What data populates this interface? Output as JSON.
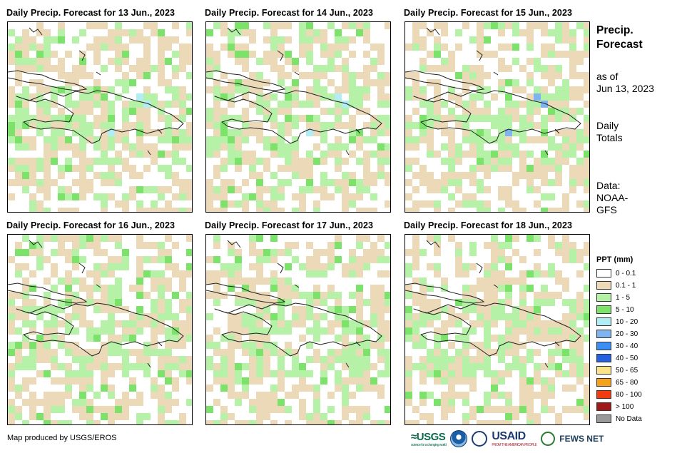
{
  "panels": [
    {
      "id": 1,
      "title": "Daily Precip. Forecast for 13 Jun., 2023"
    },
    {
      "id": 2,
      "title": "Daily Precip. Forecast for 14 Jun., 2023"
    },
    {
      "id": 3,
      "title": "Daily Precip. Forecast for 15 Jun., 2023"
    },
    {
      "id": 4,
      "title": "Daily Precip. Forecast for 16 Jun., 2023"
    },
    {
      "id": 5,
      "title": "Daily Precip. Forecast for 17 Jun., 2023"
    },
    {
      "id": 6,
      "title": "Daily Precip. Forecast for 18 Jun., 2023"
    }
  ],
  "side": {
    "title_line1": "Precip.",
    "title_line2": "Forecast",
    "asof_line1": "as of",
    "asof_line2": "Jun 13, 2023",
    "totals_line1": "Daily",
    "totals_line2": "Totals",
    "data_line1": "Data:",
    "data_line2": "NOAA-",
    "data_line3": "GFS"
  },
  "legend": {
    "title": "PPT (mm)",
    "items": [
      {
        "label": "0 - 0.1",
        "color": "#ffffff"
      },
      {
        "label": "0.1 - 1",
        "color": "#ecd9b8"
      },
      {
        "label": "1 - 5",
        "color": "#b6f1a8"
      },
      {
        "label": "5 - 10",
        "color": "#7be36a"
      },
      {
        "label": "10 - 20",
        "color": "#b2ecf5"
      },
      {
        "label": "20 - 30",
        "color": "#7fb4f0"
      },
      {
        "label": "30 - 40",
        "color": "#3b8ef2"
      },
      {
        "label": "40 - 50",
        "color": "#2460e0"
      },
      {
        "label": "50 - 65",
        "color": "#fbe38a"
      },
      {
        "label": "65 - 80",
        "color": "#f4a21a"
      },
      {
        "label": "80 - 100",
        "color": "#f23c10"
      },
      {
        "label": "> 100",
        "color": "#a01818"
      },
      {
        "label": "No Data",
        "color": "#999999"
      }
    ]
  },
  "footer": {
    "credit": "Map produced by USGS/EROS"
  },
  "logos": {
    "usgs": "≈USGS",
    "usgs_tagline": "science for a changing world",
    "usaid": "USAID",
    "usaid_tagline": "FROM THE AMERICAN PEOPLE",
    "fews": "FEWS NET"
  }
}
